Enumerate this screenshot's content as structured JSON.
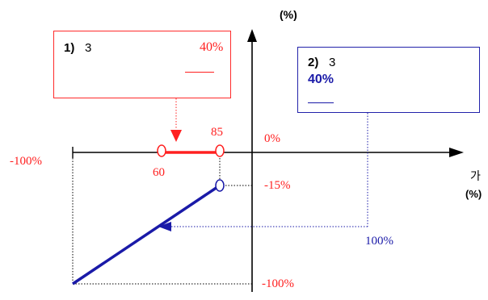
{
  "axis": {
    "y_unit_label": "(%)",
    "x_label": "가",
    "x_unit_label": "(%)"
  },
  "box_red": {
    "number": "1)",
    "text": "3",
    "value": "40%"
  },
  "box_blue": {
    "number": "2)",
    "text": "3",
    "value": "40%"
  },
  "labels": {
    "left_minus_100": "-100%",
    "x_60": "60",
    "x_85": "85",
    "zero": "0%",
    "minus_15": "-15%",
    "x_100": "100%",
    "bottom_minus_100": "-100%"
  },
  "colors": {
    "red": "#ff2020",
    "blue": "#1a1aa8",
    "black": "#000000"
  }
}
